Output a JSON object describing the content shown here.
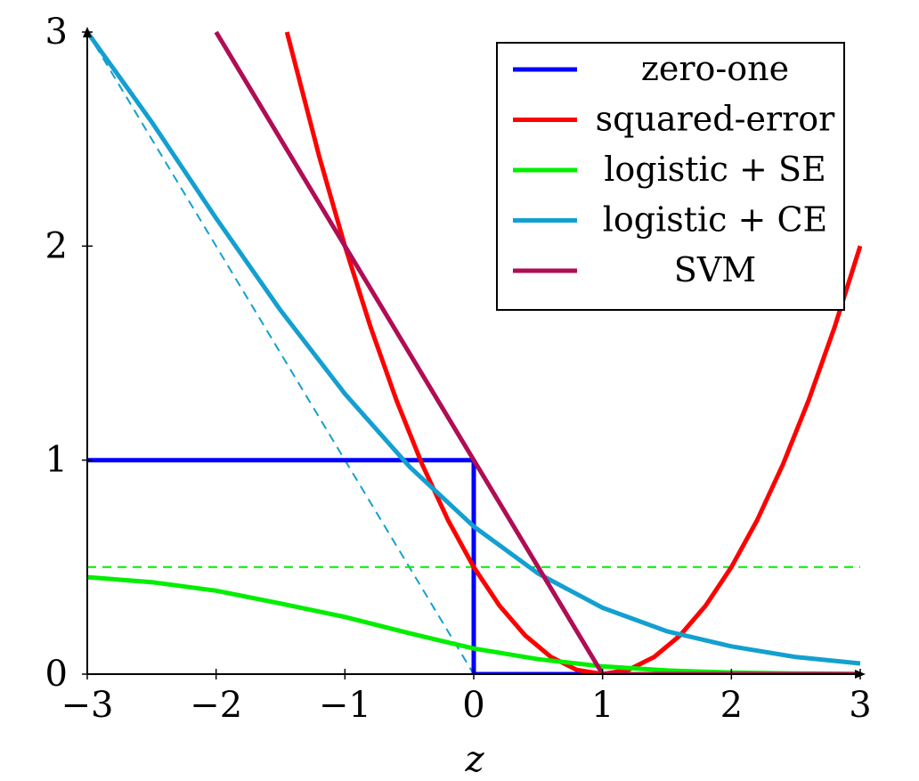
{
  "chart_data": {
    "type": "line",
    "title": "",
    "xlabel": "z",
    "ylabel": "",
    "xlim": [
      -3,
      3
    ],
    "ylim": [
      0,
      3
    ],
    "x_ticks": [
      -3,
      -2,
      -1,
      0,
      1,
      2,
      3
    ],
    "x_tick_labels": [
      "−3",
      "−2",
      "−1",
      "0",
      "1",
      "2",
      "3"
    ],
    "y_ticks": [
      0,
      1,
      2,
      3
    ],
    "y_tick_labels": [
      "0",
      "1",
      "2",
      "3"
    ],
    "grid": false,
    "legend_position": "top-right",
    "series": [
      {
        "name": "zero-one",
        "color": "#0000ff",
        "x": [
          -3,
          0,
          0,
          3
        ],
        "y": [
          1,
          1,
          0,
          0
        ]
      },
      {
        "name": "squared-error",
        "color": "#ff0000",
        "x": [
          -1.45,
          -1.2,
          -1.0,
          -0.8,
          -0.6,
          -0.4,
          -0.2,
          0.0,
          0.2,
          0.4,
          0.6,
          0.8,
          1.0,
          1.2,
          1.4,
          1.6,
          1.8,
          2.0,
          2.2,
          2.4,
          2.6,
          2.8,
          3.0
        ],
        "y": [
          3.0,
          2.42,
          2.0,
          1.62,
          1.28,
          0.98,
          0.72,
          0.5,
          0.32,
          0.18,
          0.08,
          0.02,
          0.0,
          0.02,
          0.08,
          0.18,
          0.32,
          0.5,
          0.72,
          0.98,
          1.28,
          1.62,
          2.0
        ]
      },
      {
        "name": "logistic + SE",
        "color": "#00ee00",
        "x": [
          -3.0,
          -2.5,
          -2.0,
          -1.5,
          -1.0,
          -0.5,
          0.0,
          0.5,
          1.0,
          1.5,
          2.0,
          2.5,
          3.0
        ],
        "y": [
          0.453,
          0.43,
          0.39,
          0.33,
          0.267,
          0.191,
          0.12,
          0.07,
          0.036,
          0.017,
          0.007,
          0.003,
          0.001
        ]
      },
      {
        "name": "logistic + CE",
        "color": "#13a0d0",
        "x": [
          -3.0,
          -2.5,
          -2.0,
          -1.5,
          -1.0,
          -0.5,
          0.0,
          0.5,
          1.0,
          1.5,
          2.0,
          2.5,
          3.0
        ],
        "y": [
          3.0,
          2.58,
          2.13,
          1.7,
          1.31,
          0.97,
          0.69,
          0.47,
          0.31,
          0.2,
          0.13,
          0.08,
          0.05
        ]
      },
      {
        "name": "SVM",
        "color": "#b00d55",
        "x": [
          -2.0,
          1.0,
          3.0
        ],
        "y": [
          3.0,
          0.0,
          0.0
        ]
      }
    ],
    "reference_lines": [
      {
        "color": "#13a0d0",
        "style": "dashed",
        "x": [
          -3,
          0
        ],
        "y": [
          3,
          0
        ]
      },
      {
        "color": "#00ee00",
        "style": "dashed",
        "x": [
          -3,
          3
        ],
        "y": [
          0.5,
          0.5
        ]
      }
    ]
  }
}
